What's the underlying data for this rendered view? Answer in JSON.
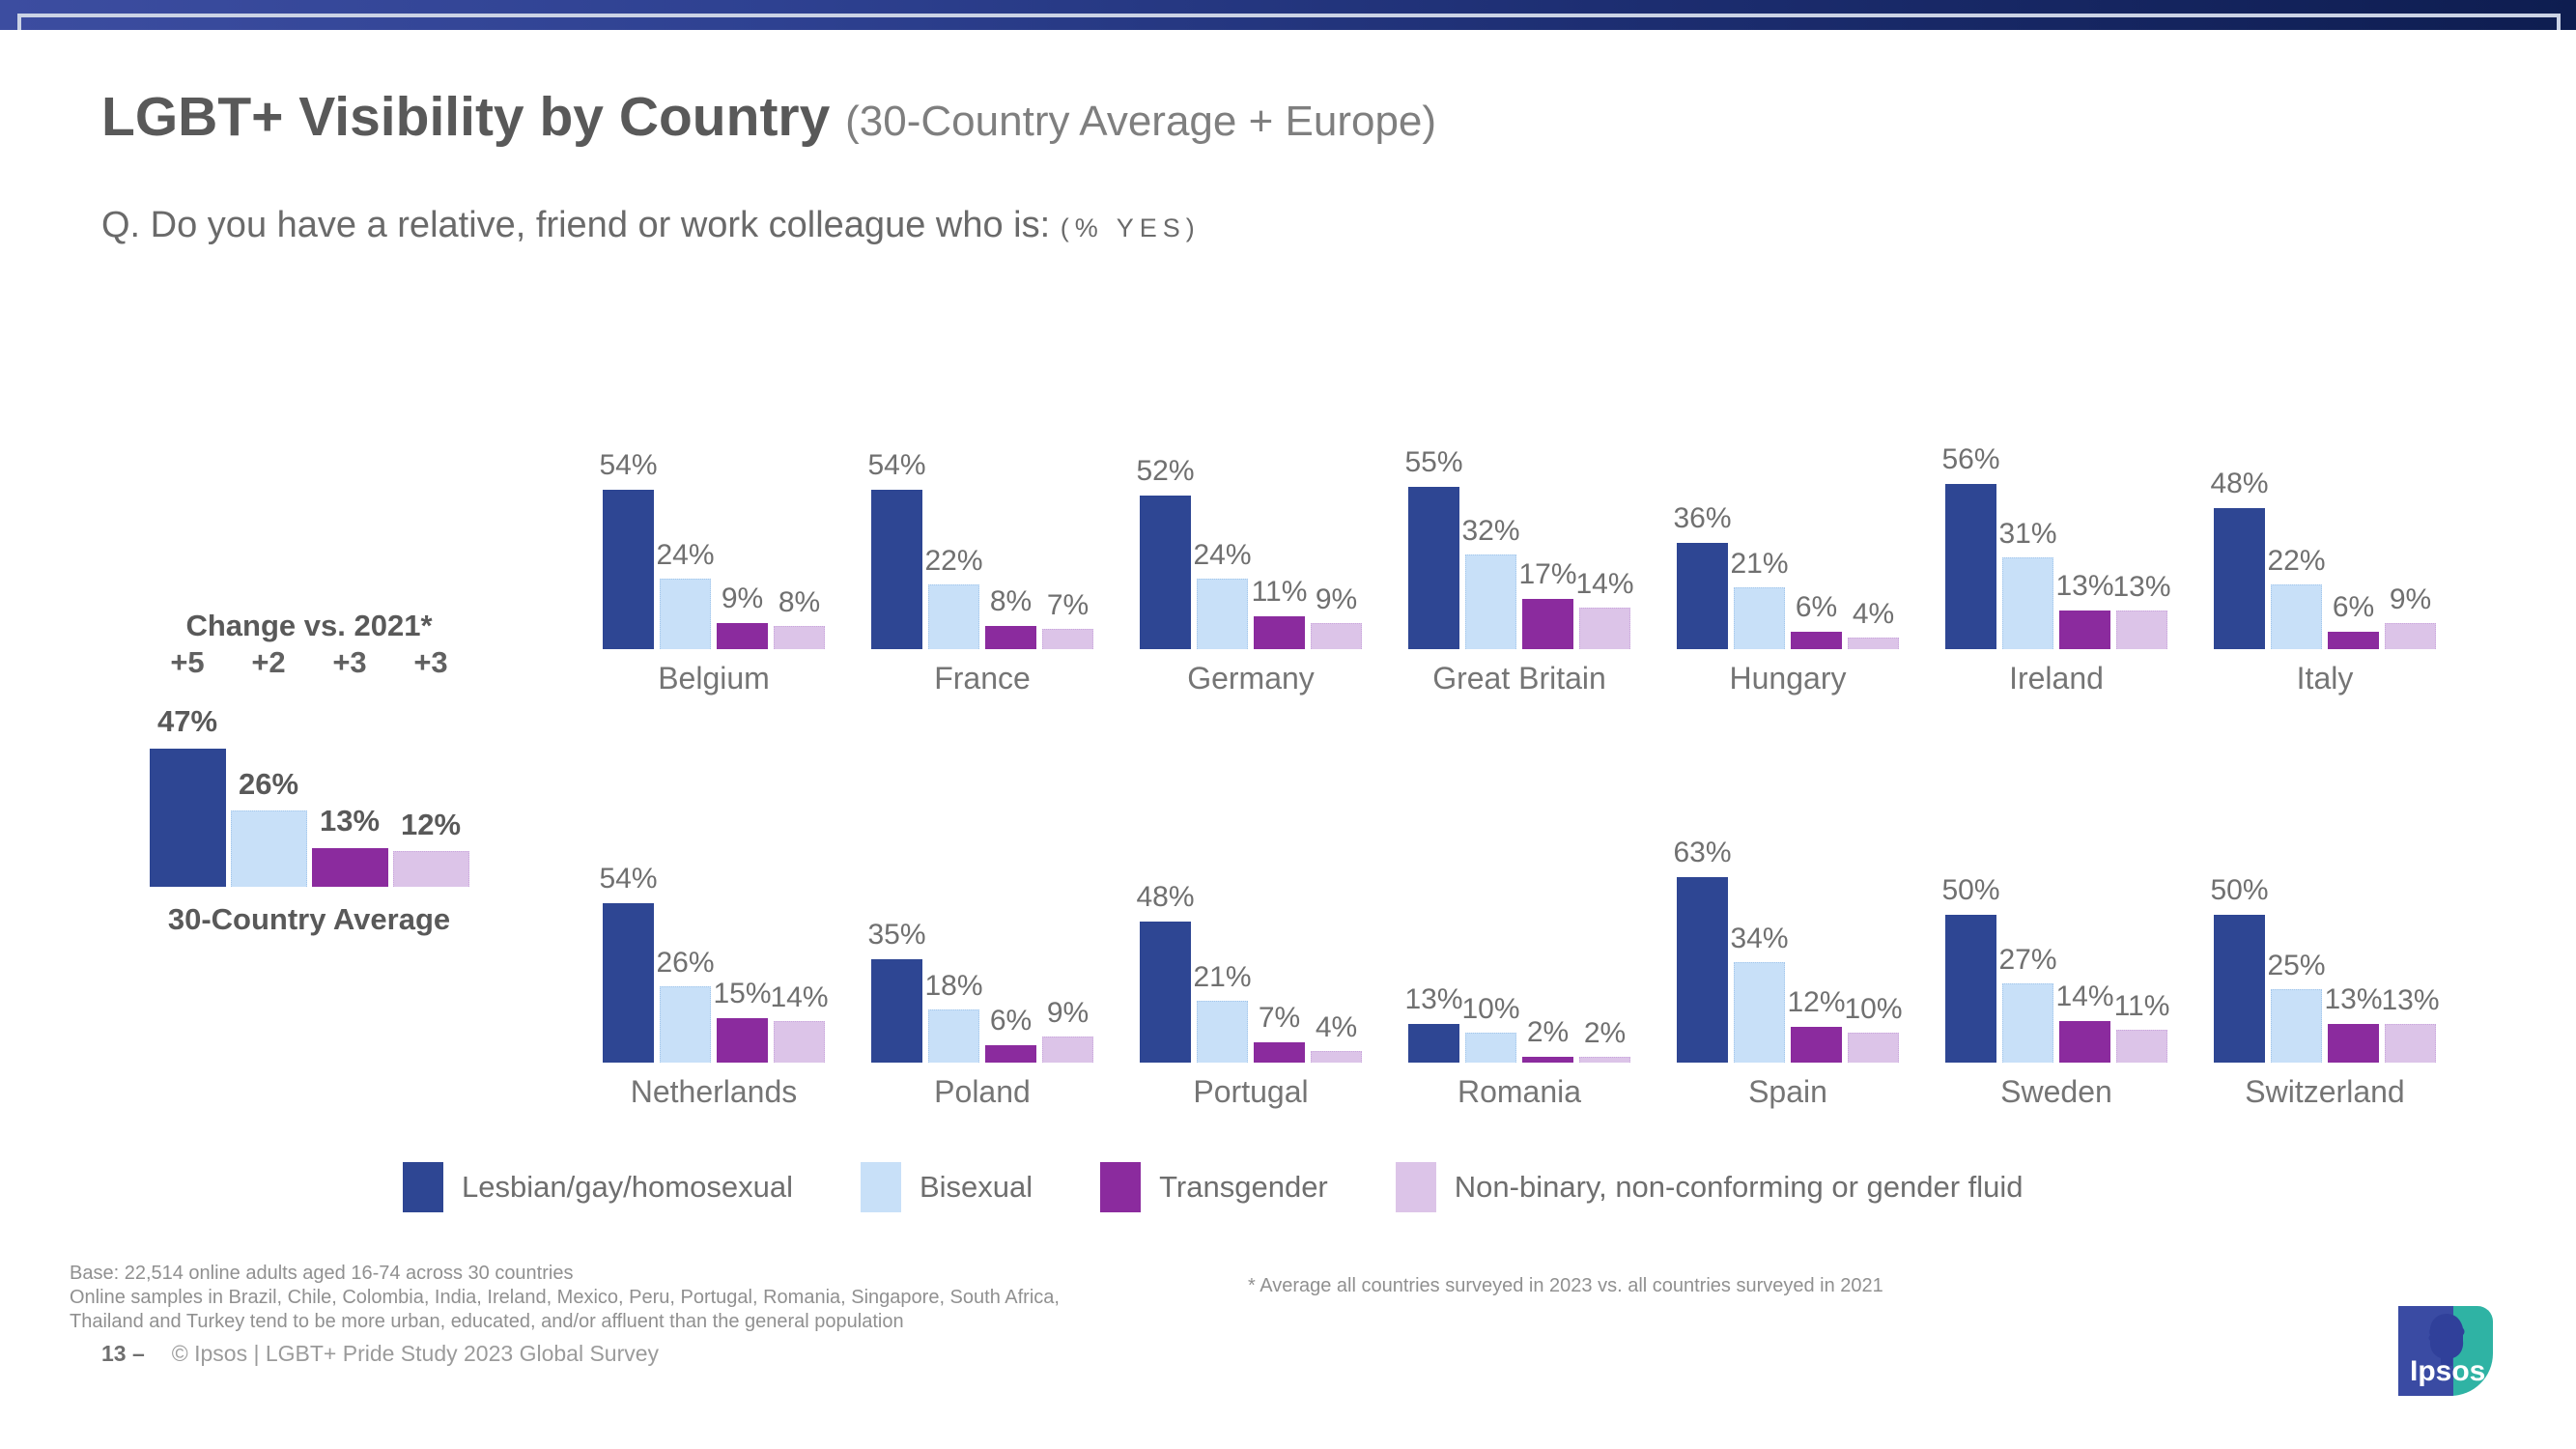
{
  "slide": {
    "title": "LGBT+ Visibility by Country",
    "title_suffix": "(30-Country Average + Europe)",
    "question": "Q. Do you have a relative, friend or work colleague who is:",
    "question_suffix": "(% YES)",
    "page_number": "13 –",
    "copyright": "© Ipsos | LGBT+ Pride Study 2023 Global Survey"
  },
  "chart_data": {
    "type": "bar",
    "unit": "%",
    "ylim": [
      0,
      70
    ],
    "grid": false,
    "legend_position": "bottom",
    "series_names": [
      "Lesbian/gay/homosexual",
      "Bisexual",
      "Transgender",
      "Non-binary, non-conforming or gender fluid"
    ],
    "series_colors": [
      "#2E4693",
      "#C8E0F8",
      "#8B2B9E",
      "#DCC4E8"
    ],
    "average": {
      "label": "30-Country Average",
      "change_title": "Change vs. 2021*",
      "change_vs_2021": [
        "+5",
        "+2",
        "+3",
        "+3"
      ],
      "values": [
        47,
        26,
        13,
        12
      ]
    },
    "countries": [
      {
        "name": "Belgium",
        "values": [
          54,
          24,
          9,
          8
        ]
      },
      {
        "name": "France",
        "values": [
          54,
          22,
          8,
          7
        ]
      },
      {
        "name": "Germany",
        "values": [
          52,
          24,
          11,
          9
        ]
      },
      {
        "name": "Great Britain",
        "values": [
          55,
          32,
          17,
          14
        ]
      },
      {
        "name": "Hungary",
        "values": [
          36,
          21,
          6,
          4
        ]
      },
      {
        "name": "Ireland",
        "values": [
          56,
          31,
          13,
          13
        ]
      },
      {
        "name": "Italy",
        "values": [
          48,
          22,
          6,
          9
        ]
      },
      {
        "name": "Netherlands",
        "values": [
          54,
          26,
          15,
          14
        ]
      },
      {
        "name": "Poland",
        "values": [
          35,
          18,
          6,
          9
        ]
      },
      {
        "name": "Portugal",
        "values": [
          48,
          21,
          7,
          4
        ]
      },
      {
        "name": "Romania",
        "values": [
          13,
          10,
          2,
          2
        ]
      },
      {
        "name": "Spain",
        "values": [
          63,
          34,
          12,
          10
        ]
      },
      {
        "name": "Sweden",
        "values": [
          50,
          27,
          14,
          11
        ]
      },
      {
        "name": "Switzerland",
        "values": [
          50,
          25,
          13,
          13
        ]
      }
    ]
  },
  "legend": [
    {
      "label": "Lesbian/gay/homosexual",
      "color": "#2E4693"
    },
    {
      "label": "Bisexual",
      "color": "#C8E0F8"
    },
    {
      "label": "Transgender",
      "color": "#8B2B9E"
    },
    {
      "label": "Non-binary, non-conforming or gender fluid",
      "color": "#DCC4E8"
    }
  ],
  "footnotes": {
    "base": "Base: 22,514 online adults aged 16-74 across 30 countries",
    "line2": "Online samples in Brazil, Chile, Colombia, India, Ireland, Mexico, Peru, Portugal, Romania, Singapore, South Africa,",
    "line3": "Thailand and Turkey tend to be more urban, educated, and/or affluent than the general population",
    "right": "* Average all countries surveyed in 2023 vs. all countries surveyed in 2021"
  },
  "logo": {
    "text": "Ipsos"
  }
}
